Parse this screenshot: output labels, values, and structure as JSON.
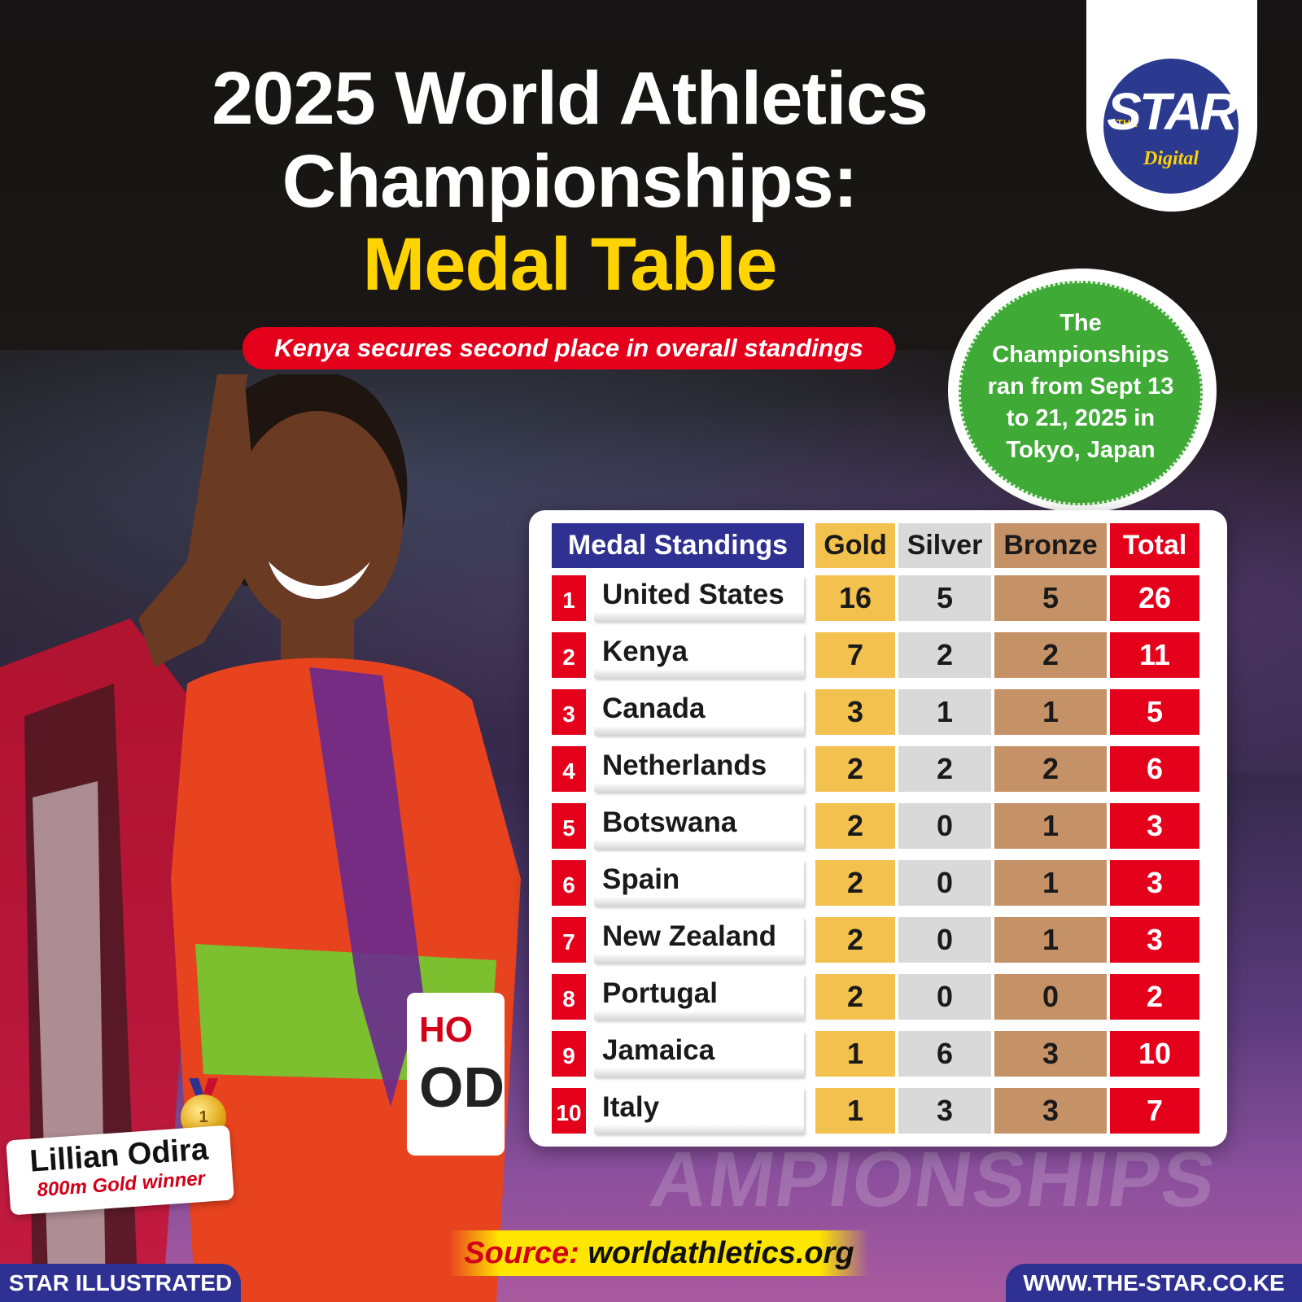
{
  "header": {
    "title_line1": "2025 World Athletics",
    "title_line2": "Championships:",
    "title_line3": "Medal Table",
    "subtitle": "Kenya secures second place in overall standings"
  },
  "logo": {
    "the": "THE",
    "star": "STAR",
    "digital": "Digital"
  },
  "badge": {
    "lines": [
      "The",
      "Championships",
      "ran from Sept 13",
      "to 21, 2025 in",
      "Tokyo, Japan"
    ]
  },
  "table": {
    "headers": {
      "name": "Medal Standings",
      "gold": "Gold",
      "silver": "Silver",
      "bronze": "Bronze",
      "total": "Total"
    },
    "rows": [
      {
        "rank": "1",
        "country": "United States",
        "gold": "16",
        "silver": "5",
        "bronze": "5",
        "total": "26"
      },
      {
        "rank": "2",
        "country": "Kenya",
        "gold": "7",
        "silver": "2",
        "bronze": "2",
        "total": "11"
      },
      {
        "rank": "3",
        "country": "Canada",
        "gold": "3",
        "silver": "1",
        "bronze": "1",
        "total": "5"
      },
      {
        "rank": "4",
        "country": "Netherlands",
        "gold": "2",
        "silver": "2",
        "bronze": "2",
        "total": "6"
      },
      {
        "rank": "5",
        "country": "Botswana",
        "gold": "2",
        "silver": "0",
        "bronze": "1",
        "total": "3"
      },
      {
        "rank": "6",
        "country": "Spain",
        "gold": "2",
        "silver": "0",
        "bronze": "1",
        "total": "3"
      },
      {
        "rank": "7",
        "country": "New Zealand",
        "gold": "2",
        "silver": "0",
        "bronze": "1",
        "total": "3"
      },
      {
        "rank": "8",
        "country": "Portugal",
        "gold": "2",
        "silver": "0",
        "bronze": "0",
        "total": "2"
      },
      {
        "rank": "9",
        "country": "Jamaica",
        "gold": "1",
        "silver": "6",
        "bronze": "3",
        "total": "10"
      },
      {
        "rank": "10",
        "country": "Italy",
        "gold": "1",
        "silver": "3",
        "bronze": "3",
        "total": "7"
      }
    ]
  },
  "caption": {
    "name": "Lillian Odira",
    "role": "800m Gold winner",
    "medal_number": "1"
  },
  "background_text": "AMPIONSHIPS",
  "source": {
    "label": "Source:",
    "value": "worldathletics.org"
  },
  "footer": {
    "left": "STAR ILLUSTRATED",
    "right": "WWW.THE-STAR.CO.KE"
  },
  "colors": {
    "brand_blue": "#2f3192",
    "accent_red": "#e4001b",
    "accent_yellow": "#ffd400",
    "gold": "#f2c14e",
    "silver": "#d9d9d9",
    "bronze": "#c59166",
    "badge_green": "#3faa35"
  }
}
